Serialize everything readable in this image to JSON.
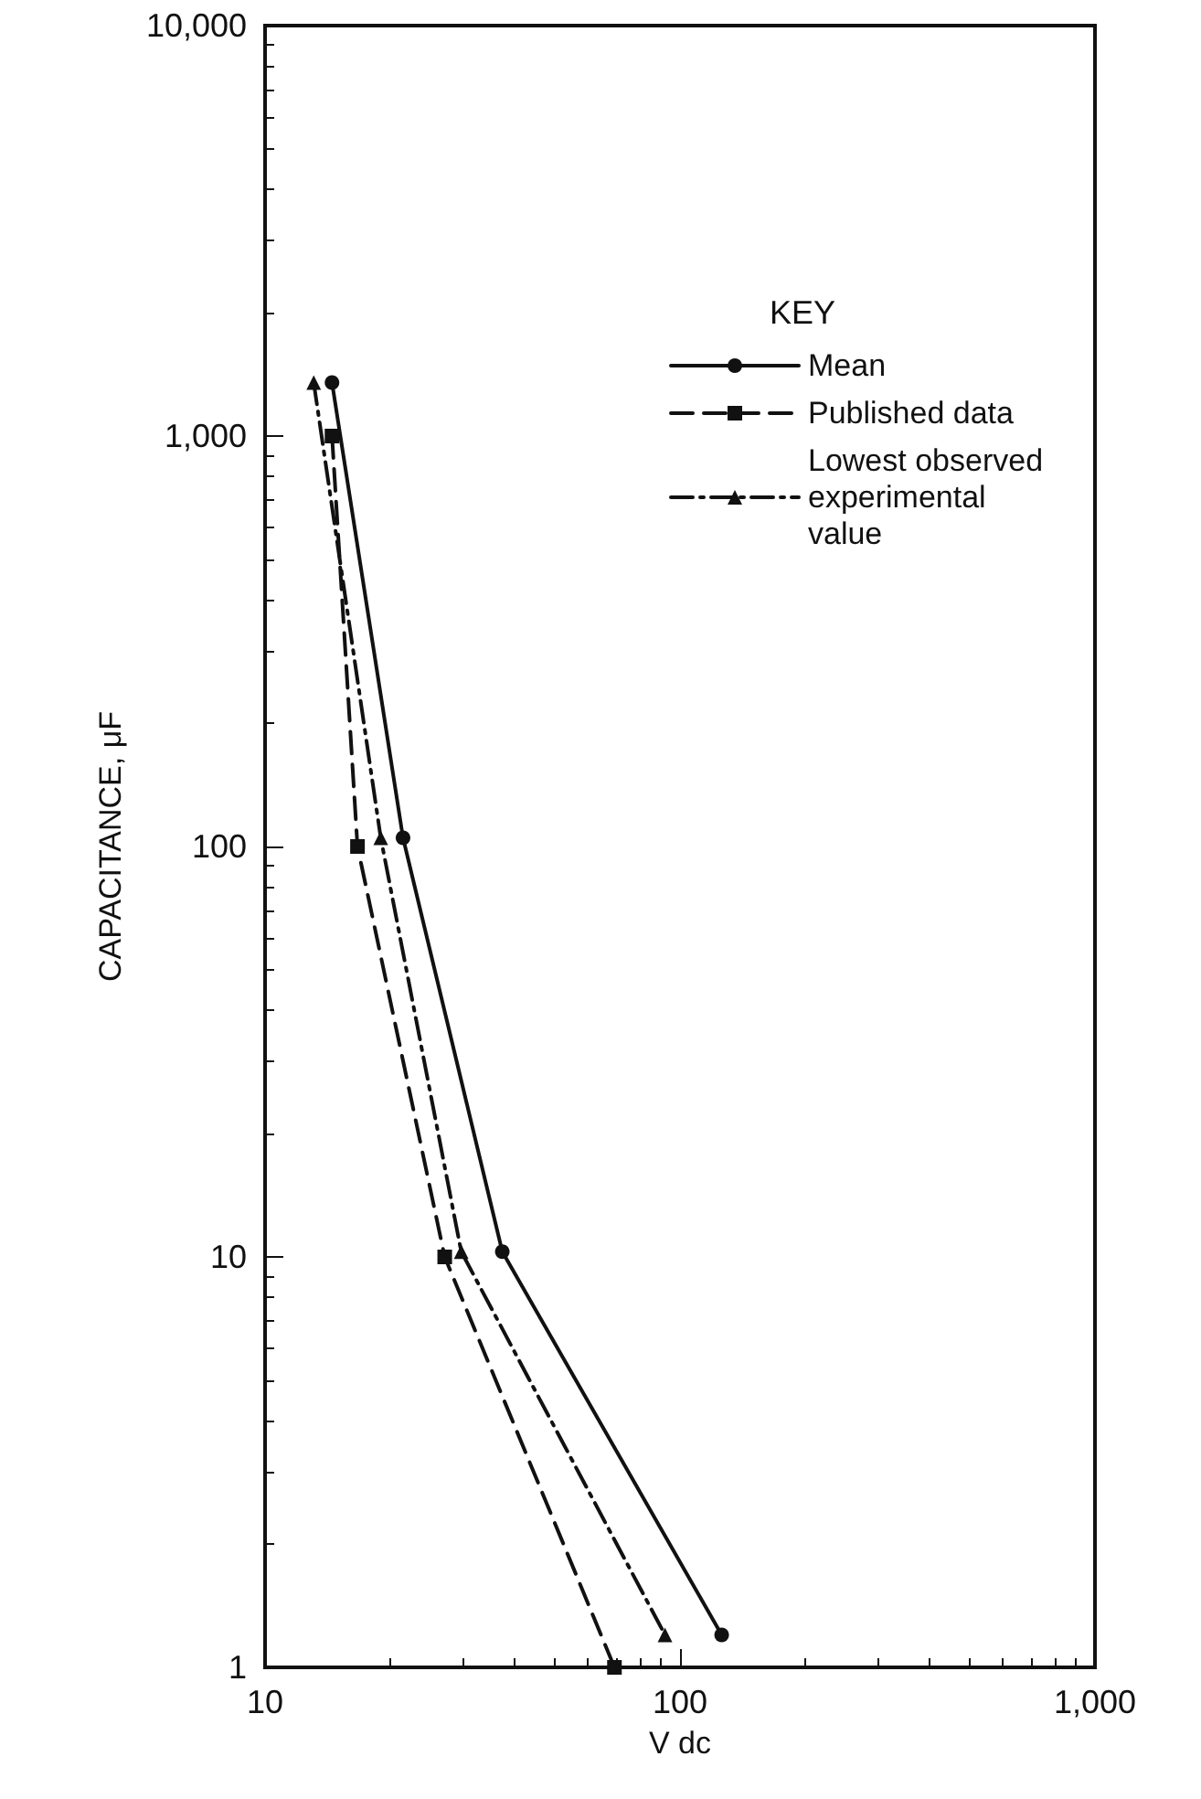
{
  "chart_data": {
    "type": "line",
    "xlabel": "V dc",
    "ylabel": "CAPACITANCE, μF",
    "legend_title": "KEY",
    "log": "xy",
    "grid": false,
    "legend": "top right",
    "xlim": [
      10,
      1000
    ],
    "xticks": [
      10,
      100,
      {
        "value": 1000,
        "label": "1,000"
      }
    ],
    "ylim": [
      1,
      10000
    ],
    "yticks": [
      1,
      10,
      100,
      {
        "value": 1000,
        "label": "1,000"
      },
      {
        "value": 10000,
        "label": "10,000"
      }
    ],
    "series": [
      {
        "name": "Mean",
        "color": "#111111",
        "marker": "circle",
        "line_style": "solid",
        "x": [
          14.5,
          21.5,
          37.3,
          126
        ],
        "values": [
          1350,
          105,
          10.3,
          1.2
        ]
      },
      {
        "name": "Published data",
        "color": "#111111",
        "marker": "square",
        "line_style": "dashed",
        "x": [
          14.5,
          16.7,
          27.1,
          69.5
        ],
        "values": [
          1000,
          100,
          10,
          1
        ]
      },
      {
        "name": "Lowest observed experimental value",
        "color": "#111111",
        "marker": "triangle",
        "line_style": "dashdot",
        "x": [
          13.1,
          19,
          29.7,
          92
        ],
        "values": [
          1350,
          105,
          10.3,
          1.2
        ]
      }
    ]
  }
}
